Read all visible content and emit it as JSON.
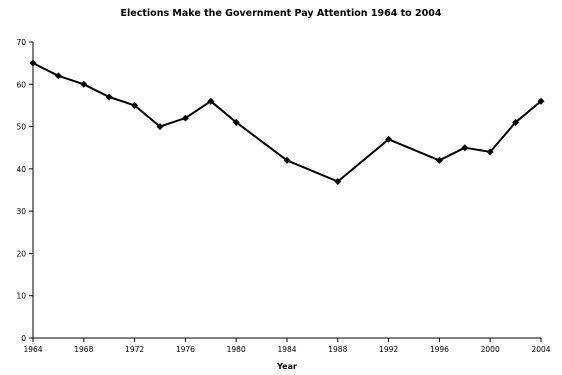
{
  "chart_data": {
    "type": "line",
    "title": "Elections Make the Government Pay Attention 1964 to 2004",
    "xlabel": "Year",
    "ylabel": "",
    "xlim": [
      1964,
      2004
    ],
    "ylim": [
      0,
      70
    ],
    "xticks": [
      1964,
      1968,
      1972,
      1976,
      1980,
      1984,
      1988,
      1992,
      1996,
      2000,
      2004
    ],
    "yticks": [
      0,
      10,
      20,
      30,
      40,
      50,
      60,
      70
    ],
    "grid": false,
    "legend": "none",
    "series": [
      {
        "color": "#000000",
        "marker": "diamond",
        "x": [
          1964,
          1966,
          1968,
          1970,
          1972,
          1974,
          1976,
          1978,
          1980,
          1984,
          1988,
          1992,
          1996,
          1998,
          2000,
          2002,
          2004
        ],
        "y": [
          65,
          62,
          60,
          57,
          55,
          50,
          52,
          56,
          51,
          42,
          37,
          47,
          42,
          45,
          44,
          51,
          56
        ]
      }
    ]
  }
}
